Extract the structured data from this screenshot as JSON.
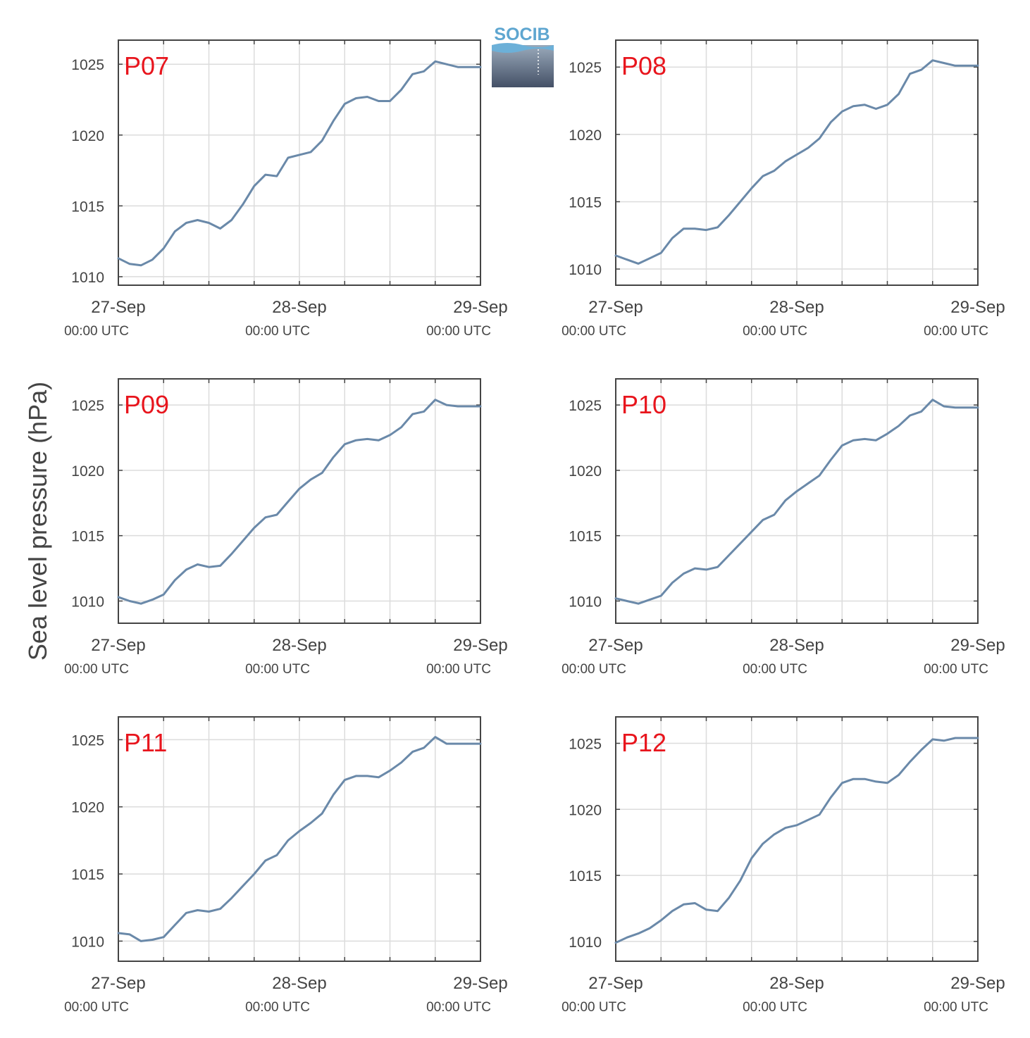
{
  "y_axis_label": "Sea level pressure (hPa)",
  "logo": {
    "text": "SOCIB"
  },
  "colors": {
    "line": "#6a89a9",
    "label": "#e8151d",
    "grid": "#dcdcdc",
    "frame": "#444444"
  },
  "x_tick_labels": [
    {
      "date": "27-Sep",
      "time": "00:00 UTC"
    },
    {
      "date": "28-Sep",
      "time": "00:00 UTC"
    },
    {
      "date": "29-Sep",
      "time": "00:00 UTC"
    }
  ],
  "chart_data": [
    {
      "type": "line",
      "label": "P07",
      "ylim": [
        1009.4,
        1026.7
      ],
      "yticks": [
        1010,
        1015,
        1020,
        1025
      ],
      "xlim": [
        0,
        48
      ],
      "x": [
        0,
        1.5,
        3,
        4.5,
        6,
        7.5,
        9,
        10.5,
        12,
        13.5,
        15,
        16.5,
        18,
        19.5,
        21,
        22.5,
        24,
        25.5,
        27,
        28.5,
        30,
        31.5,
        33,
        34.5,
        36,
        37.5,
        39,
        40.5,
        42,
        43.5,
        45,
        46.5,
        48
      ],
      "y": [
        1011.3,
        1010.9,
        1010.8,
        1011.2,
        1012.0,
        1013.2,
        1013.8,
        1014.0,
        1013.8,
        1013.4,
        1014.0,
        1015.1,
        1016.4,
        1017.2,
        1017.1,
        1018.4,
        1018.6,
        1018.8,
        1019.6,
        1021.0,
        1022.2,
        1022.6,
        1022.7,
        1022.4,
        1022.4,
        1023.2,
        1024.3,
        1024.5,
        1025.2,
        1025.0,
        1024.8,
        1024.8,
        1024.8
      ]
    },
    {
      "type": "line",
      "label": "P08",
      "ylim": [
        1008.8,
        1027.0
      ],
      "yticks": [
        1010,
        1015,
        1020,
        1025
      ],
      "xlim": [
        0,
        48
      ],
      "x": [
        0,
        1.5,
        3,
        4.5,
        6,
        7.5,
        9,
        10.5,
        12,
        13.5,
        15,
        16.5,
        18,
        19.5,
        21,
        22.5,
        24,
        25.5,
        27,
        28.5,
        30,
        31.5,
        33,
        34.5,
        36,
        37.5,
        39,
        40.5,
        42,
        43.5,
        45,
        46.5,
        48
      ],
      "y": [
        1011.0,
        1010.7,
        1010.4,
        1010.8,
        1011.2,
        1012.3,
        1013.0,
        1013.0,
        1012.9,
        1013.1,
        1014.0,
        1015.0,
        1016.0,
        1016.9,
        1017.3,
        1018.0,
        1018.5,
        1019.0,
        1019.7,
        1020.9,
        1021.7,
        1022.1,
        1022.2,
        1021.9,
        1022.2,
        1023.0,
        1024.5,
        1024.8,
        1025.5,
        1025.3,
        1025.1,
        1025.1,
        1025.1
      ]
    },
    {
      "type": "line",
      "label": "P09",
      "ylim": [
        1008.3,
        1027.0
      ],
      "yticks": [
        1010,
        1015,
        1020,
        1025
      ],
      "xlim": [
        0,
        48
      ],
      "x": [
        0,
        1.5,
        3,
        4.5,
        6,
        7.5,
        9,
        10.5,
        12,
        13.5,
        15,
        16.5,
        18,
        19.5,
        21,
        22.5,
        24,
        25.5,
        27,
        28.5,
        30,
        31.5,
        33,
        34.5,
        36,
        37.5,
        39,
        40.5,
        42,
        43.5,
        45,
        46.5,
        48
      ],
      "y": [
        1010.3,
        1010.0,
        1009.8,
        1010.1,
        1010.5,
        1011.6,
        1012.4,
        1012.8,
        1012.6,
        1012.7,
        1013.6,
        1014.6,
        1015.6,
        1016.4,
        1016.6,
        1017.6,
        1018.6,
        1019.3,
        1019.8,
        1021.0,
        1022.0,
        1022.3,
        1022.4,
        1022.3,
        1022.7,
        1023.3,
        1024.3,
        1024.5,
        1025.4,
        1025.0,
        1024.9,
        1024.9,
        1024.9
      ]
    },
    {
      "type": "line",
      "label": "P10",
      "ylim": [
        1008.3,
        1027.0
      ],
      "yticks": [
        1010,
        1015,
        1020,
        1025
      ],
      "xlim": [
        0,
        48
      ],
      "x": [
        0,
        1.5,
        3,
        4.5,
        6,
        7.5,
        9,
        10.5,
        12,
        13.5,
        15,
        16.5,
        18,
        19.5,
        21,
        22.5,
        24,
        25.5,
        27,
        28.5,
        30,
        31.5,
        33,
        34.5,
        36,
        37.5,
        39,
        40.5,
        42,
        43.5,
        45,
        46.5,
        48
      ],
      "y": [
        1010.2,
        1010.0,
        1009.8,
        1010.1,
        1010.4,
        1011.4,
        1012.1,
        1012.5,
        1012.4,
        1012.6,
        1013.5,
        1014.4,
        1015.3,
        1016.2,
        1016.6,
        1017.7,
        1018.4,
        1019.0,
        1019.6,
        1020.8,
        1021.9,
        1022.3,
        1022.4,
        1022.3,
        1022.8,
        1023.4,
        1024.2,
        1024.5,
        1025.4,
        1024.9,
        1024.8,
        1024.8,
        1024.8
      ]
    },
    {
      "type": "line",
      "label": "P11",
      "ylim": [
        1008.5,
        1026.7
      ],
      "yticks": [
        1010,
        1015,
        1020,
        1025
      ],
      "xlim": [
        0,
        48
      ],
      "x": [
        0,
        1.5,
        3,
        4.5,
        6,
        7.5,
        9,
        10.5,
        12,
        13.5,
        15,
        16.5,
        18,
        19.5,
        21,
        22.5,
        24,
        25.5,
        27,
        28.5,
        30,
        31.5,
        33,
        34.5,
        36,
        37.5,
        39,
        40.5,
        42,
        43.5,
        45,
        46.5,
        48
      ],
      "y": [
        1010.6,
        1010.5,
        1010.0,
        1010.1,
        1010.3,
        1011.2,
        1012.1,
        1012.3,
        1012.2,
        1012.4,
        1013.2,
        1014.1,
        1015.0,
        1016.0,
        1016.4,
        1017.5,
        1018.2,
        1018.8,
        1019.5,
        1020.9,
        1022.0,
        1022.3,
        1022.3,
        1022.2,
        1022.7,
        1023.3,
        1024.1,
        1024.4,
        1025.2,
        1024.7,
        1024.7,
        1024.7,
        1024.7
      ]
    },
    {
      "type": "line",
      "label": "P12",
      "ylim": [
        1008.5,
        1027.0
      ],
      "yticks": [
        1010,
        1015,
        1020,
        1025
      ],
      "xlim": [
        0,
        48
      ],
      "x": [
        0,
        1.5,
        3,
        4.5,
        6,
        7.5,
        9,
        10.5,
        12,
        13.5,
        15,
        16.5,
        18,
        19.5,
        21,
        22.5,
        24,
        25.5,
        27,
        28.5,
        30,
        31.5,
        33,
        34.5,
        36,
        37.5,
        39,
        40.5,
        42,
        43.5,
        45,
        46.5,
        48
      ],
      "y": [
        1009.9,
        1010.3,
        1010.6,
        1011.0,
        1011.6,
        1012.3,
        1012.8,
        1012.9,
        1012.4,
        1012.3,
        1013.3,
        1014.6,
        1016.3,
        1017.4,
        1018.1,
        1018.6,
        1018.8,
        1019.2,
        1019.6,
        1020.9,
        1022.0,
        1022.3,
        1022.3,
        1022.1,
        1022.0,
        1022.6,
        1023.6,
        1024.5,
        1025.3,
        1025.2,
        1025.4,
        1025.4,
        1025.4
      ]
    }
  ]
}
